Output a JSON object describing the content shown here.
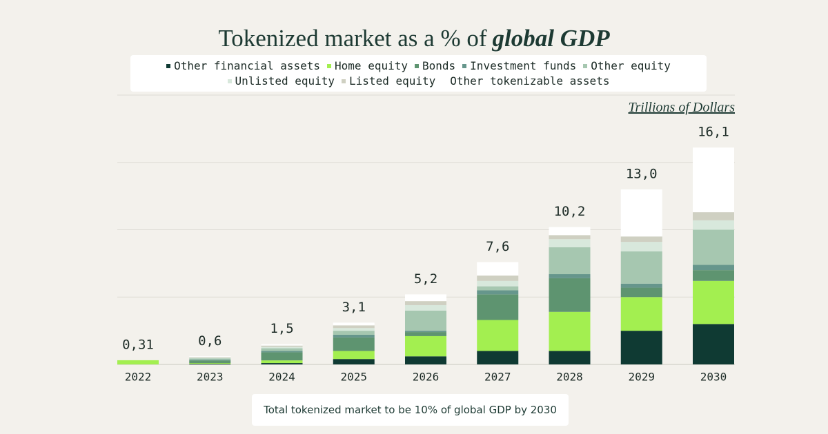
{
  "chart_data": {
    "type": "stacked_bar",
    "title": "Tokenized market as a % of",
    "title_emphasis": "global GDP",
    "unit_label": "Trillions of Dollars",
    "annotation": "Total tokenized market to be 10% of global GDP by 2030",
    "categories": [
      "2022",
      "2023",
      "2024",
      "2025",
      "2026",
      "2027",
      "2028",
      "2029",
      "2030"
    ],
    "series": [
      {
        "name": "Other financial assets",
        "color": "#0f3a33",
        "values": [
          0,
          0.05,
          0.1,
          0.4,
          0.6,
          1.0,
          1.0,
          2.5,
          3.0
        ]
      },
      {
        "name": "Home equity",
        "color": "#a3ef50",
        "values": [
          0.31,
          0.05,
          0.2,
          0.6,
          1.5,
          2.3,
          2.9,
          2.5,
          3.2
        ]
      },
      {
        "name": "Bonds",
        "color": "#5e9470",
        "values": [
          0,
          0.2,
          0.6,
          1.0,
          0.3,
          1.9,
          2.5,
          0.7,
          0.8
        ]
      },
      {
        "name": "Investment funds",
        "color": "#66968c",
        "values": [
          0,
          0.05,
          0.1,
          0.2,
          0.1,
          0.3,
          0.3,
          0.3,
          0.4
        ]
      },
      {
        "name": "Other equity",
        "color": "#a6c7b0",
        "values": [
          0,
          0.1,
          0.2,
          0.3,
          1.5,
          0.3,
          2.0,
          2.4,
          2.6
        ]
      },
      {
        "name": "Unlisted equity",
        "color": "#d8e8dc",
        "values": [
          0,
          0.05,
          0.1,
          0.2,
          0.4,
          0.4,
          0.6,
          0.7,
          0.7
        ]
      },
      {
        "name": "Listed equity",
        "color": "#cfd0c2",
        "values": [
          0,
          0.05,
          0.1,
          0.2,
          0.3,
          0.4,
          0.3,
          0.4,
          0.6
        ]
      },
      {
        "name": "Other tokenizable assets",
        "color": "#ffffff",
        "values": [
          0,
          0.05,
          0.1,
          0.2,
          0.5,
          1.0,
          0.6,
          3.5,
          4.8
        ]
      }
    ],
    "totals": {
      "values": [
        0.31,
        0.6,
        1.5,
        3.1,
        5.2,
        7.6,
        10.2,
        13.0,
        16.1
      ],
      "value_labels": [
        "0,31",
        "0,6",
        "1,5",
        "3,1",
        "5,2",
        "7,6",
        "10,2",
        "13,0",
        "16,1"
      ]
    },
    "ylim": [
      0,
      20
    ],
    "yticks": [
      0,
      5,
      10,
      15,
      20
    ],
    "grid": true
  }
}
